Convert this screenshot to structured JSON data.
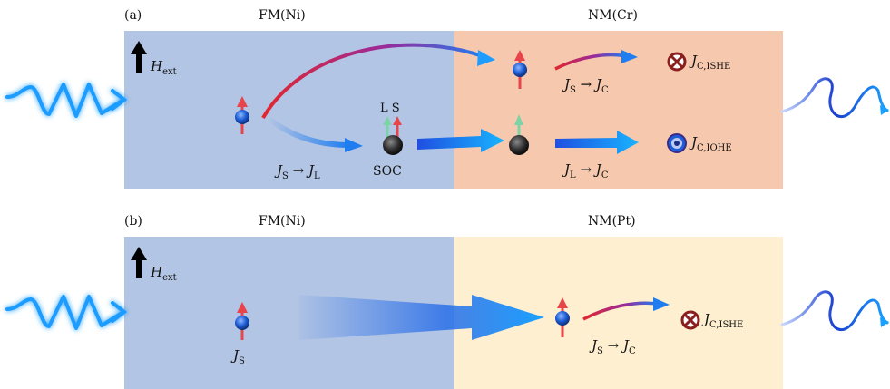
{
  "panel_a": {
    "label": "(a)",
    "fm_title": "FM(Ni)",
    "nm_title": "NM(Cr)",
    "field": {
      "symbol": "H",
      "sub": "ext"
    },
    "js_to_jl": {
      "left": "J",
      "left_sub": "S",
      "arrow": "→",
      "right": "J",
      "right_sub": "L"
    },
    "soc": "SOC",
    "ls": "L S",
    "js_to_jc": {
      "left": "J",
      "left_sub": "S",
      "arrow": "→",
      "right": "J",
      "right_sub": "C"
    },
    "jl_to_jc": {
      "left": "J",
      "left_sub": "L",
      "arrow": "→",
      "right": "J",
      "right_sub": "C"
    },
    "ishe": {
      "symbol": "J",
      "sub": "C,ISHE"
    },
    "iohe": {
      "symbol": "J",
      "sub": "C,IOHE"
    }
  },
  "panel_b": {
    "label": "(b)",
    "fm_title": "FM(Ni)",
    "nm_title": "NM(Pt)",
    "field": {
      "symbol": "H",
      "sub": "ext"
    },
    "js": {
      "symbol": "J",
      "sub": "S"
    },
    "js_to_jc": {
      "left": "J",
      "left_sub": "S",
      "arrow": "→",
      "right": "J",
      "right_sub": "C"
    },
    "ishe": {
      "symbol": "J",
      "sub": "C,ISHE"
    }
  },
  "colors": {
    "fm_region": "#b3c5e4",
    "nm_cr_region": "#f6c9ae",
    "nm_pt_region": "#fdefcf",
    "spin_arrow": "#e8454a",
    "orbital_arrow": "#7dd3a8",
    "electron": "#1e5ed6",
    "orbital_ball": "#333333",
    "flow_blue": "#1f7df0",
    "flow_red": "#e3262e"
  },
  "icons": [
    "field-arrow-icon",
    "laser-pulse-icon",
    "thz-wave-icon",
    "into-page-icon",
    "out-of-page-icon"
  ]
}
